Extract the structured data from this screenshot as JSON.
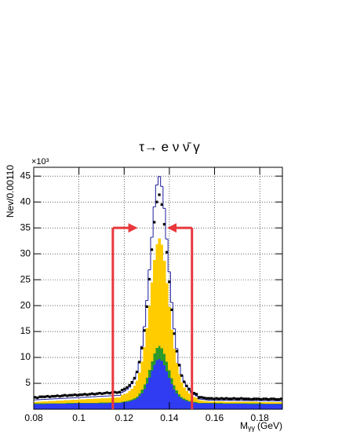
{
  "chart_data": {
    "type": "histogram",
    "title": "τ→ e ν ν̄ γ",
    "y_label": "Nev/0.00110",
    "y_exponent": "×10³",
    "x_label": "M",
    "x_label_sub": "γγ",
    "x_label_unit": "(GeV)",
    "xlim": [
      0.08,
      0.19
    ],
    "ylim": [
      0,
      46.7
    ],
    "xticks": [
      0.08,
      0.1,
      0.12,
      0.14,
      0.16,
      0.18
    ],
    "yticks": [
      5,
      10,
      15,
      20,
      25,
      30,
      35,
      40,
      45
    ],
    "grid": true,
    "bins": [
      0.08,
      0.0811,
      0.0822,
      0.0833,
      0.0844,
      0.0855,
      0.0866,
      0.0877,
      0.0888,
      0.0899,
      0.091,
      0.0921,
      0.0932,
      0.0943,
      0.0954,
      0.0965,
      0.0976,
      0.0987,
      0.0998,
      0.1009,
      0.102,
      0.1031,
      0.1042,
      0.1053,
      0.1064,
      0.1075,
      0.1086,
      0.1097,
      0.1108,
      0.1119,
      0.113,
      0.1141,
      0.1152,
      0.1163,
      0.1174,
      0.1185,
      0.1196,
      0.1207,
      0.1218,
      0.1229,
      0.124,
      0.1251,
      0.1262,
      0.1273,
      0.1284,
      0.1295,
      0.1306,
      0.1317,
      0.1328,
      0.1339,
      0.135,
      0.1361,
      0.1372,
      0.1383,
      0.1394,
      0.1405,
      0.1416,
      0.1427,
      0.1438,
      0.1449,
      0.146,
      0.1471,
      0.1482,
      0.1493,
      0.1504,
      0.1515,
      0.1526,
      0.1537,
      0.1548,
      0.1559,
      0.157,
      0.1581,
      0.1592,
      0.1603,
      0.1614,
      0.1625,
      0.1636,
      0.1647,
      0.1658,
      0.1669,
      0.168,
      0.1691,
      0.1702,
      0.1713,
      0.1724,
      0.1735,
      0.1746,
      0.1757,
      0.1768,
      0.1779,
      0.179,
      0.1801,
      0.1812,
      0.1823,
      0.1834,
      0.1845,
      0.1856,
      0.1867,
      0.1878,
      0.1889,
      0.19
    ],
    "series": [
      {
        "color": "#2f3cf2",
        "values": [
          1.0,
          1.01,
          1.01,
          1.02,
          1.02,
          1.03,
          1.04,
          1.04,
          1.05,
          1.05,
          1.06,
          1.07,
          1.07,
          1.08,
          1.08,
          1.09,
          1.1,
          1.1,
          1.11,
          1.11,
          1.12,
          1.13,
          1.13,
          1.14,
          1.14,
          1.15,
          1.16,
          1.16,
          1.17,
          1.17,
          1.18,
          1.19,
          1.19,
          1.2,
          1.2,
          1.32,
          1.37,
          1.43,
          1.53,
          1.66,
          1.84,
          2.1,
          2.54,
          3.13,
          3.9,
          4.93,
          6.13,
          7.4,
          8.6,
          9.45,
          9.7,
          9.36,
          8.5,
          7.31,
          6.03,
          4.84,
          3.81,
          3.04,
          2.44,
          2.01,
          1.75,
          1.58,
          1.44,
          1.35,
          1.28,
          1.24,
          1.12,
          1.12,
          1.11,
          1.11,
          1.1,
          1.1,
          1.09,
          1.09,
          1.08,
          1.08,
          1.07,
          1.07,
          1.06,
          1.06,
          1.05,
          1.05,
          1.04,
          1.04,
          1.03,
          1.03,
          1.02,
          1.02,
          1.01,
          1.01,
          1.0,
          1.0,
          0.99,
          0.99,
          0.98,
          0.98,
          0.97,
          0.97,
          0.96,
          0.96
        ]
      },
      {
        "color": "#2a9a2a",
        "values": [
          0.1,
          0.1,
          0.1,
          0.1,
          0.1,
          0.1,
          0.1,
          0.1,
          0.1,
          0.1,
          0.1,
          0.1,
          0.1,
          0.1,
          0.1,
          0.1,
          0.1,
          0.1,
          0.1,
          0.1,
          0.1,
          0.1,
          0.1,
          0.1,
          0.1,
          0.1,
          0.1,
          0.1,
          0.1,
          0.1,
          0.1,
          0.1,
          0.1,
          0.1,
          0.1,
          0.13,
          0.14,
          0.16,
          0.18,
          0.22,
          0.27,
          0.34,
          0.46,
          0.63,
          0.84,
          1.13,
          1.47,
          1.83,
          2.16,
          2.4,
          2.5,
          2.4,
          2.16,
          1.83,
          1.47,
          1.13,
          0.84,
          0.63,
          0.46,
          0.34,
          0.27,
          0.22,
          0.18,
          0.16,
          0.14,
          0.13,
          0.1,
          0.1,
          0.1,
          0.1,
          0.1,
          0.1,
          0.1,
          0.1,
          0.1,
          0.1,
          0.1,
          0.1,
          0.1,
          0.1,
          0.1,
          0.1,
          0.1,
          0.1,
          0.1,
          0.1,
          0.1,
          0.1,
          0.1,
          0.1,
          0.1,
          0.1,
          0.1,
          0.1,
          0.1,
          0.1,
          0.1,
          0.1,
          0.1,
          0.1
        ]
      },
      {
        "color": "#ffcc00",
        "values": [
          0.3,
          0.32,
          0.34,
          0.36,
          0.38,
          0.4,
          0.42,
          0.44,
          0.46,
          0.48,
          0.5,
          0.52,
          0.54,
          0.56,
          0.58,
          0.6,
          0.62,
          0.64,
          0.66,
          0.68,
          0.7,
          0.72,
          0.74,
          0.76,
          0.78,
          0.8,
          0.82,
          0.84,
          0.86,
          0.88,
          0.9,
          0.92,
          0.94,
          0.96,
          0.98,
          1.25,
          1.37,
          1.53,
          1.74,
          2.06,
          2.47,
          3.07,
          4.07,
          5.45,
          7.23,
          9.59,
          12.34,
          15.28,
          18.03,
          20.0,
          20.8,
          19.97,
          17.97,
          15.19,
          12.22,
          9.44,
          7.05,
          5.24,
          3.83,
          2.8,
          2.17,
          1.73,
          1.38,
          1.14,
          0.95,
          0.8,
          0.5,
          0.45,
          0.4,
          0.35,
          0.3,
          0.3,
          0.3,
          0.3,
          0.3,
          0.3,
          0.3,
          0.3,
          0.3,
          0.3,
          0.3,
          0.3,
          0.3,
          0.3,
          0.3,
          0.3,
          0.3,
          0.3,
          0.3,
          0.3,
          0.3,
          0.3,
          0.3,
          0.3,
          0.3,
          0.3,
          0.3,
          0.3,
          0.3,
          0.3
        ]
      }
    ],
    "outline": {
      "color": "#1c1c9c",
      "values": [
        1.8,
        1.83,
        1.85,
        1.88,
        1.9,
        1.93,
        1.96,
        1.98,
        2.01,
        2.03,
        2.06,
        2.09,
        2.11,
        2.14,
        2.16,
        2.19,
        2.22,
        2.24,
        2.27,
        2.29,
        2.32,
        2.35,
        2.37,
        2.4,
        2.42,
        2.45,
        2.48,
        2.5,
        2.53,
        2.55,
        2.58,
        2.61,
        2.63,
        2.66,
        2.68,
        3.25,
        3.49,
        3.81,
        4.25,
        4.92,
        5.79,
        7.06,
        9.2,
        12.14,
        15.94,
        21.0,
        26.9,
        33.19,
        39.08,
        43.29,
        44.9,
        43.02,
        38.77,
        32.86,
        26.53,
        20.61,
        15.52,
        11.69,
        8.71,
        6.55,
        5.25,
        4.36,
        3.65,
        3.19,
        2.83,
        2.57,
        1.97,
        1.92,
        1.86,
        1.81,
        1.75,
        1.75,
        1.74,
        1.74,
        1.73,
        1.73,
        1.72,
        1.72,
        1.71,
        1.71,
        1.7,
        1.7,
        1.69,
        1.69,
        1.68,
        1.68,
        1.67,
        1.67,
        1.66,
        1.66,
        1.65,
        1.65,
        1.64,
        1.64,
        1.63,
        1.63,
        1.62,
        1.62,
        1.61,
        1.61
      ]
    },
    "points": {
      "color": "#000000",
      "values": [
        2.3,
        2.2,
        2.4,
        2.4,
        2.4,
        2.5,
        2.4,
        2.5,
        2.5,
        2.6,
        2.5,
        2.6,
        2.7,
        2.6,
        2.7,
        2.7,
        2.8,
        2.7,
        2.8,
        2.8,
        2.9,
        2.8,
        2.9,
        3.0,
        2.9,
        3.0,
        3.1,
        3.0,
        3.1,
        3.2,
        3.1,
        3.2,
        3.3,
        3.2,
        3.3,
        3.7,
        3.9,
        4.2,
        4.6,
        5.2,
        6.0,
        7.2,
        9.1,
        11.8,
        15.2,
        19.8,
        25.1,
        30.8,
        36.1,
        40.0,
        41.4,
        39.5,
        35.7,
        30.3,
        24.6,
        19.2,
        14.6,
        11.2,
        8.5,
        6.5,
        5.3,
        4.5,
        3.9,
        3.4,
        3.1,
        2.9,
        2.3,
        2.3,
        2.2,
        2.1,
        2.1,
        2.1,
        2.0,
        2.1,
        2.0,
        2.1,
        2.0,
        2.1,
        2.0,
        2.0,
        2.1,
        2.0,
        2.0,
        2.1,
        2.0,
        2.0,
        2.0,
        1.9,
        2.0,
        2.0,
        2.0,
        1.9,
        2.0,
        2.0,
        1.9,
        2.0,
        2.0,
        1.9,
        1.9,
        2.0
      ]
    },
    "arrow_color": "#e8383d",
    "arrows": [
      {
        "x": 0.115,
        "y": 35,
        "to": 0.126
      },
      {
        "x": 0.15,
        "y": 35,
        "to": 0.139
      }
    ]
  }
}
